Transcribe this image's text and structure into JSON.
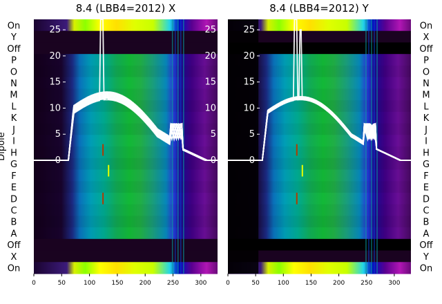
{
  "colors": {
    "spectrum_line": "#ffffff",
    "band_black": "#000000",
    "band_dark": "#1a0320",
    "flag_red": "#b23a00",
    "flag_yellow": "#e8ff00"
  },
  "chart_data": [
    {
      "type": "heatmap",
      "title": "8.4 (LBB4=2012) X",
      "ylabel": "Dipole",
      "row_labels": [
        "On",
        "Y",
        "Off",
        "P",
        "O",
        "N",
        "M",
        "L",
        "K",
        "J",
        "I",
        "H",
        "G",
        "F",
        "E",
        "D",
        "C",
        "B",
        "A",
        "Off",
        "X",
        "On"
      ],
      "x_ticks": [
        0,
        50,
        100,
        150,
        200,
        250,
        300
      ],
      "xlim": [
        0,
        330
      ],
      "inner_y_ticks": [
        0,
        5,
        10,
        15,
        20,
        25
      ],
      "inner_ylim": [
        -21.7,
        27
      ],
      "colormap": "gist_ncar",
      "overlay_line_color": "white",
      "overlay_series_count": 11
    },
    {
      "type": "heatmap",
      "title": "8.4 (LBB4=2012) Y",
      "row_labels": [
        "On",
        "X",
        "Off",
        "P",
        "O",
        "N",
        "M",
        "L",
        "K",
        "J",
        "I",
        "H",
        "G",
        "F",
        "E",
        "D",
        "C",
        "B",
        "A",
        "Off",
        "Y",
        "On"
      ],
      "x_ticks": [
        0,
        50,
        100,
        150,
        200,
        250,
        300
      ],
      "xlim": [
        0,
        330
      ],
      "inner_y_ticks": [
        0,
        5,
        10,
        15,
        20,
        25
      ],
      "inner_ylim": [
        -21.7,
        27
      ],
      "colormap": "gist_ncar",
      "overlay_line_color": "white",
      "overlay_series_count": 11
    }
  ]
}
